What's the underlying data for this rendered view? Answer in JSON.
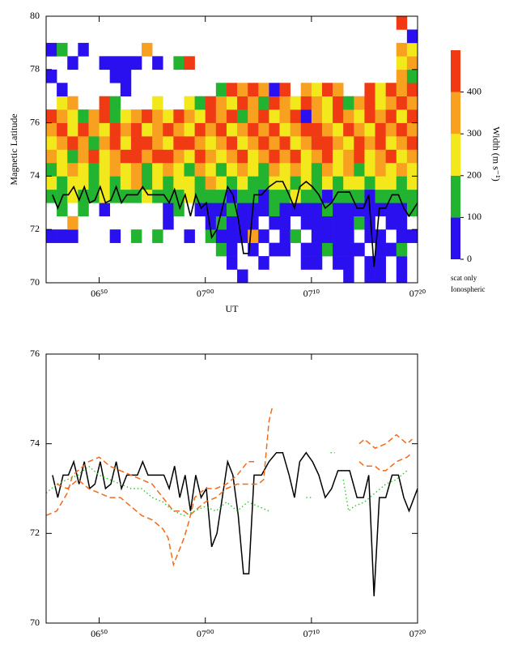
{
  "chart_data": [
    {
      "type": "heatmap",
      "y_label": "Magnetic Latitude",
      "x_label": "UT",
      "xlim": [
        45,
        80
      ],
      "ylim": [
        70,
        80
      ],
      "xticks": [
        {
          "value": 50,
          "label": "06⁵⁰"
        },
        {
          "value": 60,
          "label": "07⁰⁰"
        },
        {
          "value": 70,
          "label": "07¹⁰"
        },
        {
          "value": 80,
          "label": "07²⁰"
        }
      ],
      "yticks": [
        70,
        72,
        74,
        76,
        78,
        80
      ],
      "x": [
        45.5,
        46.5,
        47.5,
        48.5,
        49.5,
        50.5,
        51.5,
        52.5,
        53.5,
        54.5,
        55.5,
        56.5,
        57.5,
        58.5,
        59.5,
        60.5,
        61.5,
        62.5,
        63.5,
        64.5,
        65.5,
        66.5,
        67.5,
        68.5,
        69.5,
        70.5,
        71.5,
        72.5,
        73.5,
        74.5,
        75.5,
        76.5,
        77.5,
        78.5,
        79.5
      ],
      "y": [
        70.25,
        70.75,
        71.25,
        71.75,
        72.25,
        72.75,
        73.25,
        73.75,
        74.25,
        74.75,
        75.25,
        75.75,
        76.25,
        76.75,
        77.25,
        77.75,
        78.25,
        78.75,
        79.25,
        79.75
      ],
      "z": [
        [
          null,
          null,
          null,
          null,
          null,
          null,
          null,
          null,
          null,
          null,
          null,
          null,
          null,
          null,
          null,
          null,
          null,
          null,
          50,
          null,
          null,
          null,
          null,
          null,
          null,
          null,
          null,
          null,
          50,
          null,
          50,
          50,
          null,
          50,
          null
        ],
        [
          null,
          null,
          null,
          null,
          null,
          null,
          null,
          null,
          null,
          null,
          null,
          null,
          null,
          null,
          null,
          null,
          null,
          50,
          null,
          null,
          50,
          null,
          null,
          null,
          50,
          50,
          null,
          50,
          50,
          null,
          50,
          50,
          null,
          50,
          null
        ],
        [
          null,
          null,
          null,
          null,
          null,
          null,
          null,
          null,
          null,
          null,
          null,
          null,
          null,
          null,
          null,
          null,
          150,
          50,
          null,
          50,
          null,
          50,
          50,
          null,
          50,
          50,
          150,
          50,
          50,
          50,
          null,
          50,
          50,
          150,
          null
        ],
        [
          50,
          50,
          50,
          null,
          null,
          null,
          50,
          null,
          150,
          null,
          150,
          null,
          null,
          50,
          null,
          150,
          50,
          50,
          50,
          350,
          50,
          null,
          50,
          150,
          null,
          50,
          50,
          50,
          50,
          null,
          50,
          50,
          null,
          50,
          50
        ],
        [
          null,
          null,
          350,
          null,
          null,
          null,
          null,
          null,
          null,
          null,
          null,
          50,
          null,
          null,
          null,
          50,
          150,
          50,
          50,
          50,
          null,
          50,
          50,
          null,
          50,
          50,
          50,
          50,
          50,
          150,
          50,
          null,
          50,
          50,
          null
        ],
        [
          null,
          150,
          null,
          150,
          null,
          50,
          null,
          null,
          null,
          null,
          null,
          50,
          150,
          null,
          50,
          50,
          50,
          150,
          50,
          50,
          50,
          150,
          50,
          50,
          50,
          50,
          150,
          50,
          50,
          50,
          50,
          50,
          50,
          50,
          150
        ],
        [
          150,
          150,
          250,
          150,
          150,
          250,
          150,
          150,
          150,
          250,
          150,
          150,
          150,
          250,
          150,
          150,
          150,
          50,
          150,
          150,
          50,
          150,
          150,
          250,
          150,
          150,
          50,
          150,
          150,
          150,
          50,
          150,
          150,
          150,
          150
        ],
        [
          250,
          150,
          250,
          250,
          150,
          250,
          150,
          250,
          350,
          150,
          250,
          150,
          250,
          250,
          150,
          350,
          250,
          150,
          250,
          150,
          150,
          250,
          250,
          150,
          250,
          150,
          250,
          150,
          250,
          250,
          150,
          250,
          250,
          150,
          250
        ],
        [
          150,
          250,
          350,
          250,
          150,
          250,
          350,
          250,
          350,
          150,
          250,
          350,
          250,
          150,
          350,
          250,
          150,
          250,
          350,
          250,
          150,
          350,
          250,
          350,
          250,
          150,
          350,
          250,
          350,
          150,
          250,
          350,
          250,
          350,
          250
        ],
        [
          350,
          250,
          150,
          350,
          450,
          250,
          350,
          450,
          450,
          350,
          450,
          450,
          350,
          250,
          450,
          350,
          250,
          350,
          450,
          250,
          350,
          450,
          350,
          450,
          250,
          350,
          450,
          250,
          350,
          450,
          250,
          350,
          450,
          250,
          350
        ],
        [
          250,
          350,
          450,
          350,
          150,
          350,
          450,
          250,
          450,
          450,
          350,
          250,
          450,
          450,
          350,
          250,
          350,
          450,
          250,
          350,
          450,
          350,
          450,
          250,
          350,
          450,
          450,
          350,
          250,
          450,
          350,
          450,
          250,
          350,
          450
        ],
        [
          350,
          450,
          250,
          450,
          350,
          250,
          450,
          350,
          450,
          250,
          350,
          450,
          350,
          250,
          450,
          350,
          450,
          250,
          350,
          450,
          350,
          450,
          250,
          350,
          450,
          450,
          350,
          250,
          450,
          350,
          250,
          450,
          350,
          450,
          350
        ],
        [
          450,
          350,
          250,
          150,
          350,
          450,
          150,
          250,
          350,
          450,
          350,
          250,
          450,
          350,
          250,
          450,
          350,
          450,
          150,
          350,
          450,
          250,
          350,
          450,
          50,
          350,
          250,
          450,
          350,
          250,
          450,
          350,
          450,
          250,
          450
        ],
        [
          null,
          250,
          350,
          null,
          null,
          450,
          150,
          null,
          null,
          null,
          250,
          null,
          null,
          250,
          150,
          450,
          350,
          250,
          450,
          350,
          150,
          450,
          350,
          250,
          450,
          350,
          250,
          450,
          150,
          350,
          450,
          250,
          350,
          450,
          350
        ],
        [
          null,
          50,
          null,
          null,
          null,
          null,
          null,
          50,
          null,
          null,
          null,
          null,
          null,
          null,
          null,
          null,
          150,
          450,
          350,
          450,
          350,
          50,
          450,
          null,
          350,
          250,
          450,
          350,
          null,
          null,
          450,
          250,
          450,
          350,
          450
        ],
        [
          50,
          null,
          null,
          null,
          null,
          null,
          50,
          50,
          null,
          null,
          null,
          null,
          null,
          null,
          null,
          null,
          null,
          null,
          null,
          null,
          null,
          null,
          null,
          null,
          null,
          null,
          null,
          null,
          null,
          null,
          null,
          null,
          null,
          350,
          150
        ],
        [
          null,
          null,
          50,
          null,
          null,
          50,
          50,
          50,
          50,
          null,
          50,
          null,
          150,
          450,
          null,
          null,
          null,
          null,
          null,
          null,
          null,
          null,
          null,
          null,
          null,
          null,
          null,
          null,
          null,
          null,
          null,
          null,
          null,
          250,
          350
        ],
        [
          50,
          150,
          null,
          50,
          null,
          null,
          null,
          null,
          null,
          350,
          null,
          null,
          null,
          null,
          null,
          null,
          null,
          null,
          null,
          null,
          null,
          null,
          null,
          null,
          null,
          null,
          null,
          null,
          null,
          null,
          null,
          null,
          null,
          350,
          250
        ],
        [
          null,
          null,
          null,
          null,
          null,
          null,
          null,
          null,
          null,
          null,
          null,
          null,
          null,
          null,
          null,
          null,
          null,
          null,
          null,
          null,
          null,
          null,
          null,
          null,
          null,
          null,
          null,
          null,
          null,
          null,
          null,
          null,
          null,
          null,
          50
        ],
        [
          null,
          null,
          null,
          null,
          null,
          null,
          null,
          null,
          null,
          null,
          null,
          null,
          null,
          null,
          null,
          null,
          null,
          null,
          null,
          null,
          null,
          null,
          null,
          null,
          null,
          null,
          null,
          null,
          null,
          null,
          null,
          null,
          null,
          450,
          null
        ]
      ],
      "colorbar": {
        "bins": [
          0,
          100,
          200,
          300,
          400,
          500
        ],
        "colors": [
          "#2a10ee",
          "#22b430",
          "#f2e81c",
          "#f8a020",
          "#f03a14"
        ],
        "ticks": [
          0,
          100,
          200,
          300,
          400
        ],
        "label": "Width (m s⁻¹)",
        "notes": [
          "scat only",
          "Ionospheric"
        ]
      }
    },
    {
      "type": "line",
      "xlim": [
        45,
        80
      ],
      "ylim": [
        70,
        76
      ],
      "xticks": [
        {
          "value": 50,
          "label": "06⁵⁰"
        },
        {
          "value": 60,
          "label": "07⁰⁰"
        },
        {
          "value": 70,
          "label": "07¹⁰"
        },
        {
          "value": 80,
          "label": "07²⁰"
        }
      ],
      "yticks": [
        70,
        72,
        74,
        76
      ],
      "series": [
        {
          "color": "#000000",
          "style": "solid",
          "x": [
            45.6,
            46.1,
            46.6,
            47.1,
            47.6,
            48.1,
            48.6,
            49.1,
            49.6,
            50.1,
            50.6,
            51.1,
            51.6,
            52.1,
            52.6,
            53.6,
            54.1,
            54.6,
            56.1,
            56.6,
            57.1,
            57.6,
            58.1,
            58.6,
            59.1,
            59.6,
            60.1,
            60.6,
            61.1,
            61.6,
            62.1,
            62.6,
            63.1,
            63.6,
            64.1,
            64.6,
            65.3,
            66.0,
            66.7,
            67.3,
            67.9,
            68.4,
            68.9,
            69.5,
            70.1,
            70.7,
            71.3,
            71.9,
            72.5,
            73.6,
            74.3,
            74.9,
            75.4,
            75.9,
            76.4,
            77.0,
            77.6,
            78.2,
            78.7,
            79.2,
            80.0
          ],
          "values": [
            73.3,
            72.8,
            73.3,
            73.3,
            73.6,
            73.1,
            73.6,
            73.0,
            73.1,
            73.6,
            73.0,
            73.1,
            73.6,
            73.0,
            73.3,
            73.3,
            73.6,
            73.3,
            73.3,
            73.0,
            73.5,
            72.8,
            73.3,
            72.5,
            73.3,
            72.8,
            73.0,
            71.7,
            72.0,
            72.8,
            73.6,
            73.3,
            72.4,
            71.1,
            71.1,
            73.3,
            73.3,
            73.6,
            73.8,
            73.8,
            73.3,
            72.8,
            73.6,
            73.8,
            73.6,
            73.3,
            72.8,
            73.0,
            73.4,
            73.4,
            72.8,
            72.8,
            73.3,
            70.6,
            72.8,
            72.8,
            73.3,
            73.3,
            72.8,
            72.5,
            73.0
          ]
        },
        {
          "color": "#f26a1b",
          "style": "dashed",
          "x": [
            45,
            46,
            47,
            47.5,
            48,
            49,
            50,
            51,
            52,
            53,
            54,
            55,
            56,
            57,
            58,
            58.5,
            59,
            60,
            61,
            62,
            63,
            64,
            65,
            65.5,
            66,
            66.3,
            70,
            74.5,
            75,
            76,
            77,
            78,
            79,
            79.5
          ],
          "values": [
            72.4,
            72.5,
            72.9,
            73.3,
            73.4,
            73.6,
            73.7,
            73.5,
            73.4,
            73.3,
            73.2,
            73.1,
            72.8,
            72.5,
            72.5,
            72.4,
            72.5,
            72.7,
            72.8,
            73.0,
            73.1,
            73.1,
            73.1,
            73.2,
            74.5,
            74.8,
            null,
            74.0,
            74.1,
            73.9,
            74.0,
            74.2,
            74.0,
            74.1
          ]
        },
        {
          "color": "#f26a1b",
          "style": "dashed",
          "x": [
            46,
            47,
            48,
            49,
            50,
            51,
            52,
            53,
            54,
            55,
            56,
            56.5,
            57,
            57.5,
            58,
            58.5,
            59,
            60,
            61,
            62,
            63,
            64,
            64.6,
            70,
            74.5,
            75,
            76,
            76.5,
            77,
            78,
            79,
            79.5
          ],
          "values": [
            73.1,
            73.0,
            73.2,
            73.0,
            72.9,
            72.8,
            72.8,
            72.6,
            72.4,
            72.3,
            72.1,
            71.9,
            71.3,
            71.6,
            71.9,
            72.3,
            72.8,
            73.0,
            73.0,
            73.1,
            73.3,
            73.6,
            73.6,
            null,
            73.6,
            73.5,
            73.5,
            73.4,
            73.4,
            73.6,
            73.7,
            73.8
          ]
        },
        {
          "color": "#2ec82e",
          "style": "dotted",
          "x": [
            45,
            46,
            47,
            48,
            49,
            49.5,
            50,
            51,
            52,
            53,
            54,
            55,
            56,
            57,
            58,
            59,
            60,
            61,
            62,
            63,
            64,
            65,
            66,
            67,
            69.5,
            70,
            71,
            71.8,
            72.2,
            72.6,
            73,
            73.5,
            74,
            75,
            76,
            77,
            78,
            79
          ],
          "values": [
            72.9,
            73.1,
            73.2,
            73.3,
            73.5,
            73.4,
            73.3,
            73.2,
            73.1,
            73.0,
            73.0,
            72.8,
            72.7,
            72.5,
            72.4,
            72.5,
            72.6,
            72.5,
            72.7,
            72.5,
            72.7,
            72.6,
            72.5,
            null,
            72.8,
            72.8,
            null,
            73.8,
            73.8,
            null,
            73.2,
            72.5,
            72.6,
            72.7,
            72.9,
            73.1,
            73.2,
            73.4
          ]
        }
      ]
    }
  ]
}
